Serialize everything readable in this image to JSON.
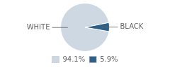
{
  "chart_data": {
    "type": "pie",
    "categories": [
      "WHITE",
      "BLACK"
    ],
    "values": [
      94.1,
      5.9
    ],
    "value_labels": [
      "94.1%",
      "5.9%"
    ],
    "colors": [
      "#cdd8e3",
      "#2e5f87"
    ],
    "legend": "bottom"
  }
}
